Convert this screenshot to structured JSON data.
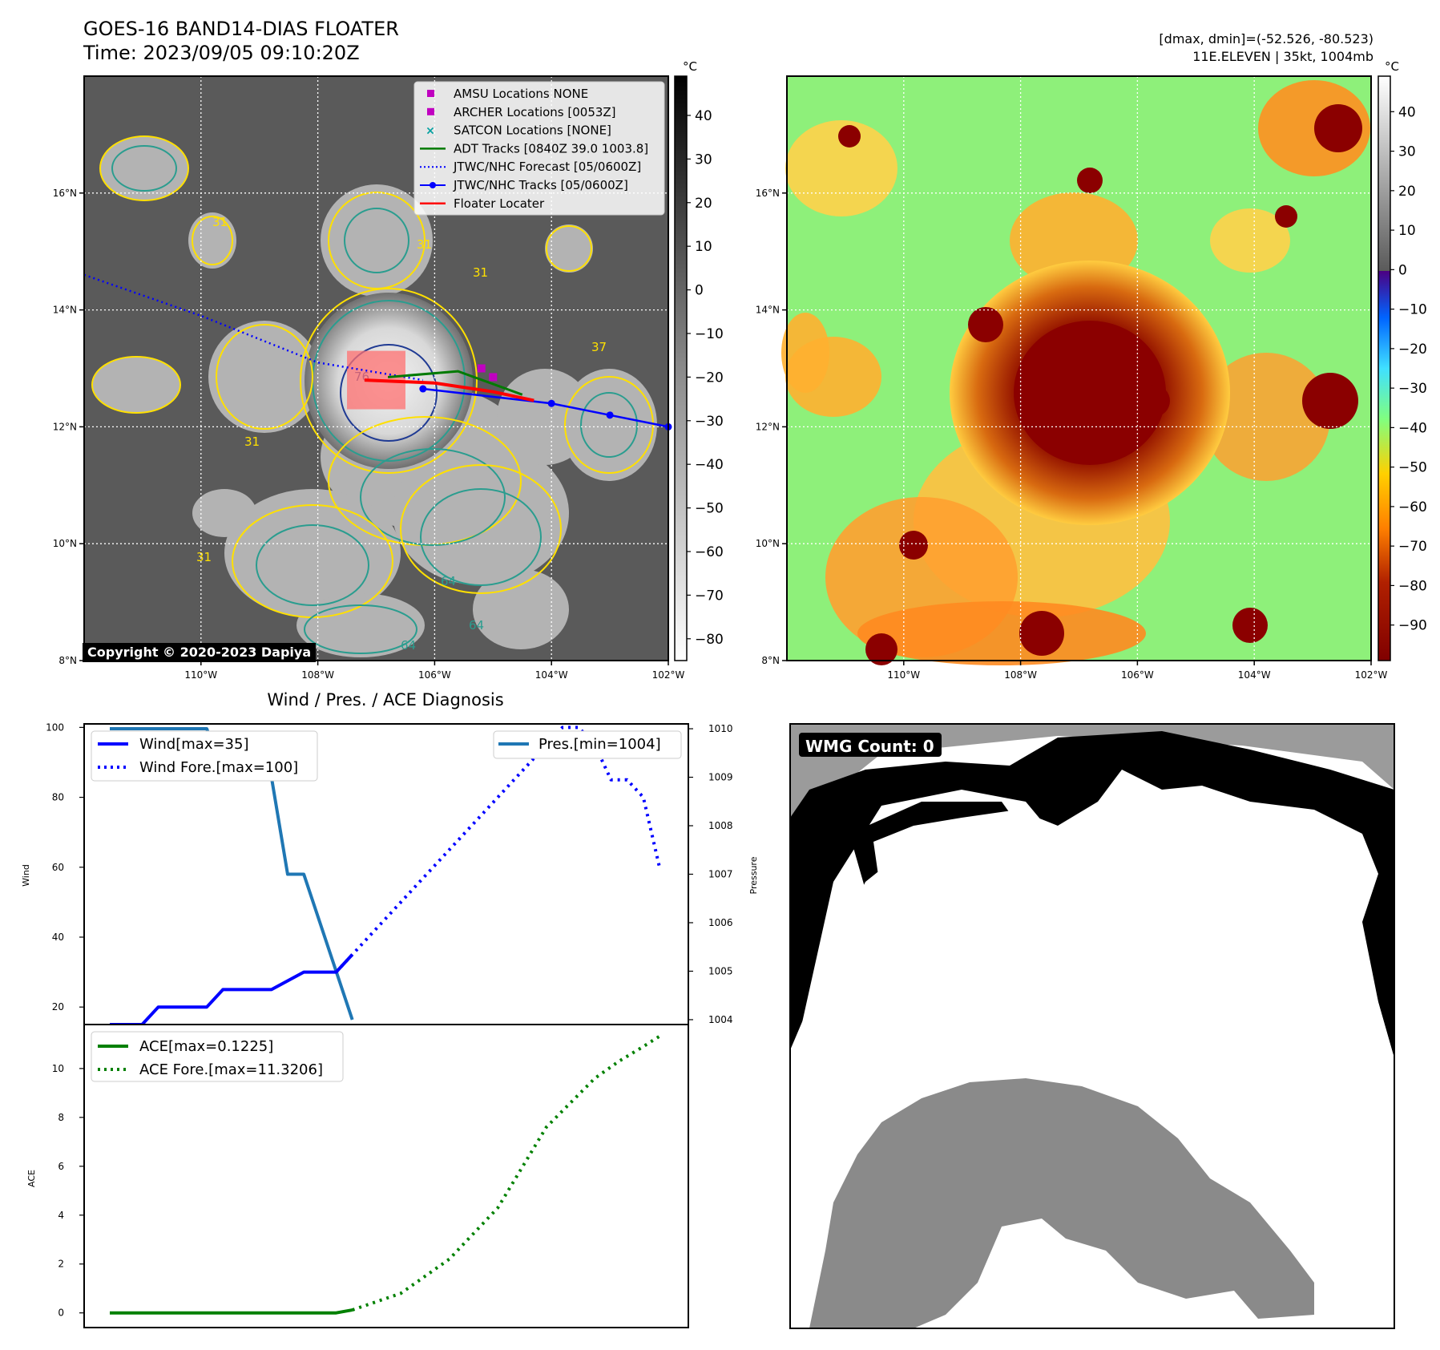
{
  "header": {
    "title_line1": "GOES-16 BAND14-DIAS FLOATER",
    "title_line2": "Time: 2023/09/05 09:10:20Z",
    "dmax_dmin": "[dmax, dmin]=(-52.526, -80.523)",
    "storm_info": "11E.ELEVEN | 35kt, 1004mb"
  },
  "copyright": "Copyright © 2020-2023 Dapiya",
  "map": {
    "lon_ticks": [
      "110°W",
      "108°W",
      "106°W",
      "104°W",
      "102°W"
    ],
    "lat_ticks": [
      "16°N",
      "14°N",
      "12°N",
      "10°N",
      "8°N"
    ],
    "lon_range": [
      -112,
      -102
    ],
    "lat_range": [
      8,
      18
    ],
    "contour_labels": [
      "31",
      "31",
      "31",
      "31",
      "37",
      "76",
      "64",
      "64",
      "64",
      "31"
    ],
    "legend": [
      {
        "label": "AMSU Locations NONE",
        "color": "#c000c0",
        "style": "square"
      },
      {
        "label": "ARCHER Locations [0053Z]",
        "color": "#c000c0",
        "style": "square"
      },
      {
        "label": "SATCON Locations [NONE]",
        "color": "#00a0a0",
        "style": "x"
      },
      {
        "label": "ADT Tracks [0840Z 39.0 1003.8]",
        "color": "#007a00",
        "style": "line"
      },
      {
        "label": "JTWC/NHC Forecast [05/0600Z]",
        "color": "#0000ff",
        "style": "dotted"
      },
      {
        "label": "JTWC/NHC Tracks [05/0600Z]",
        "color": "#0000ff",
        "style": "line-dot"
      },
      {
        "label": "Floater Locater",
        "color": "#ff0000",
        "style": "line"
      }
    ],
    "jtwc_forecast_track": [
      [
        -112.0,
        14.6
      ],
      [
        -110.0,
        13.9
      ],
      [
        -108.0,
        13.1
      ],
      [
        -106.2,
        12.8
      ]
    ],
    "jtwc_track": [
      [
        -106.2,
        12.65
      ],
      [
        -104.0,
        12.4
      ],
      [
        -103.0,
        12.2
      ],
      [
        -102.0,
        12.0
      ]
    ],
    "adt_track": [
      [
        -106.8,
        12.85
      ],
      [
        -105.6,
        12.95
      ],
      [
        -104.5,
        12.55
      ]
    ],
    "floater_track": [
      [
        -107.2,
        12.8
      ],
      [
        -106.0,
        12.75
      ],
      [
        -105.0,
        12.6
      ],
      [
        -104.3,
        12.45
      ]
    ],
    "archer_points": [
      [
        -105.2,
        13.0
      ],
      [
        -105.0,
        12.85
      ]
    ],
    "floater_box": {
      "lon": [
        -107.5,
        -106.5
      ],
      "lat": [
        12.3,
        13.3
      ]
    }
  },
  "colorbar_gray": {
    "unit": "°C",
    "ticks": [
      "40",
      "30",
      "20",
      "10",
      "0",
      "−10",
      "−20",
      "−30",
      "−40",
      "−50",
      "−60",
      "−70",
      "−80"
    ],
    "range": [
      -85,
      49
    ]
  },
  "colorbar_color": {
    "unit": "°C",
    "ticks": [
      "40",
      "30",
      "20",
      "10",
      "0",
      "−10",
      "−20",
      "−30",
      "−40",
      "−50",
      "−60",
      "−70",
      "−80",
      "−90"
    ],
    "range": [
      -99,
      49
    ]
  },
  "wmg": {
    "label": "WMG Count: 0"
  },
  "chart_data": [
    {
      "type": "line",
      "title": "Wind / Pres. / ACE Diagnosis",
      "ylabel": "Wind",
      "ylabel_right": "Pressure",
      "ylim": [
        15,
        101
      ],
      "ylim_right": [
        1003.9,
        1010.1
      ],
      "yticks": [
        20,
        40,
        60,
        80,
        100
      ],
      "yticks_right": [
        1004,
        1005,
        1006,
        1007,
        1008,
        1009,
        1010
      ],
      "series": [
        {
          "name": "Wind[max=35]",
          "color": "#0000ff",
          "style": "solid",
          "axis": "left",
          "x": [
            0,
            2,
            3,
            6,
            7,
            10,
            12,
            14,
            15
          ],
          "values": [
            15,
            15,
            20,
            20,
            25,
            25,
            30,
            30,
            35
          ]
        },
        {
          "name": "Wind Fore.[max=100]",
          "color": "#0000ff",
          "style": "dotted",
          "axis": "left",
          "x": [
            14,
            15,
            16,
            17,
            18,
            19,
            20,
            21,
            22,
            23,
            24,
            25,
            26,
            27,
            28,
            29,
            30,
            31,
            32,
            33,
            34
          ],
          "values": [
            30,
            35,
            40,
            45,
            50,
            55,
            60,
            65,
            70,
            75,
            80,
            85,
            90,
            95,
            100,
            100,
            95,
            85,
            85,
            80,
            60
          ]
        },
        {
          "name": "Pres.[min=1004]",
          "color": "#1f77b4",
          "style": "solid",
          "axis": "right",
          "x": [
            0,
            1,
            6,
            7,
            8,
            9,
            10,
            11,
            12,
            13,
            14,
            15
          ],
          "values": [
            1010,
            1010,
            1010,
            1009,
            1009,
            1009,
            1009,
            1007,
            1007,
            1006,
            1005,
            1004
          ]
        }
      ]
    },
    {
      "type": "line",
      "ylabel": "ACE",
      "ylim": [
        -0.6,
        11.8
      ],
      "yticks": [
        0,
        2,
        4,
        6,
        8,
        10
      ],
      "series": [
        {
          "name": "ACE[max=0.1225]",
          "color": "#008000",
          "style": "solid",
          "x": [
            0,
            14,
            15
          ],
          "values": [
            0,
            0,
            0.12
          ]
        },
        {
          "name": "ACE Fore.[max=11.3206]",
          "color": "#008000",
          "style": "dotted",
          "x": [
            15,
            18,
            21,
            24,
            27,
            30,
            31.5,
            33,
            34
          ],
          "values": [
            0.12,
            0.8,
            2.2,
            4.3,
            7.6,
            9.6,
            10.3,
            10.9,
            11.32
          ]
        }
      ]
    }
  ]
}
